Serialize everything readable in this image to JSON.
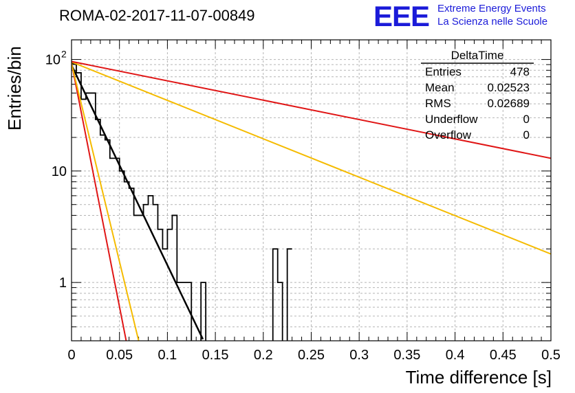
{
  "title": "ROMA-02-2017-11-07-00849",
  "logo": {
    "mark": "EEE",
    "line1": "Extreme Energy Events",
    "line2": "La Scienza nelle Scuole",
    "color": "#1b1bd9"
  },
  "stats": {
    "name": "DeltaTime",
    "rows": [
      {
        "label": "Entries",
        "value": "478"
      },
      {
        "label": "Mean",
        "value": "0.02523"
      },
      {
        "label": "RMS",
        "value": "0.02689"
      },
      {
        "label": "Underflow",
        "value": "0"
      },
      {
        "label": "Overflow",
        "value": "0"
      }
    ]
  },
  "chart_data": {
    "type": "histogram",
    "xlabel": "Time difference [s]",
    "ylabel": "Entries/bin",
    "xlim": [
      0,
      0.5
    ],
    "ylim": [
      0.3,
      150
    ],
    "yscale": "log",
    "grid": true,
    "xticks": [
      "0",
      "0.05",
      "0.1",
      "0.15",
      "0.2",
      "0.25",
      "0.3",
      "0.35",
      "0.4",
      "0.45",
      "0.5"
    ],
    "ytick_labels": [
      {
        "value": 1,
        "label": "1"
      },
      {
        "value": 10,
        "label": "10"
      },
      {
        "value": 100,
        "label": "10",
        "exponent": "2"
      }
    ],
    "bin_width": 0.005,
    "histogram": {
      "color": "#000000",
      "bin_edges_start": 0,
      "counts": [
        92,
        76,
        44,
        50,
        50,
        29,
        21,
        19,
        13,
        13,
        10,
        8,
        7,
        4,
        4,
        5,
        6,
        5,
        3,
        2,
        3,
        4,
        1,
        1,
        1,
        0,
        0,
        1,
        0,
        0,
        0,
        0,
        0,
        0,
        0,
        0,
        0,
        0,
        0,
        0,
        0,
        0,
        2,
        1,
        0,
        2
      ]
    },
    "curves": [
      {
        "name": "fit",
        "color": "#000000",
        "width": 2.5,
        "x": [
          0,
          0.137
        ],
        "y": [
          89,
          0.31
        ]
      },
      {
        "name": "red-fast",
        "color": "#e01515",
        "width": 2,
        "x": [
          0,
          0.057
        ],
        "y": [
          93,
          0.3
        ]
      },
      {
        "name": "orange-fast",
        "color": "#f5bb00",
        "width": 2,
        "x": [
          0,
          0.07
        ],
        "y": [
          92,
          0.3
        ]
      },
      {
        "name": "orange-slow",
        "color": "#f5bb00",
        "width": 2,
        "x": [
          0,
          0.5
        ],
        "y": [
          95,
          1.8
        ]
      },
      {
        "name": "red-slow",
        "color": "#e01515",
        "width": 2,
        "x": [
          0,
          0.5
        ],
        "y": [
          96,
          13
        ]
      }
    ]
  }
}
